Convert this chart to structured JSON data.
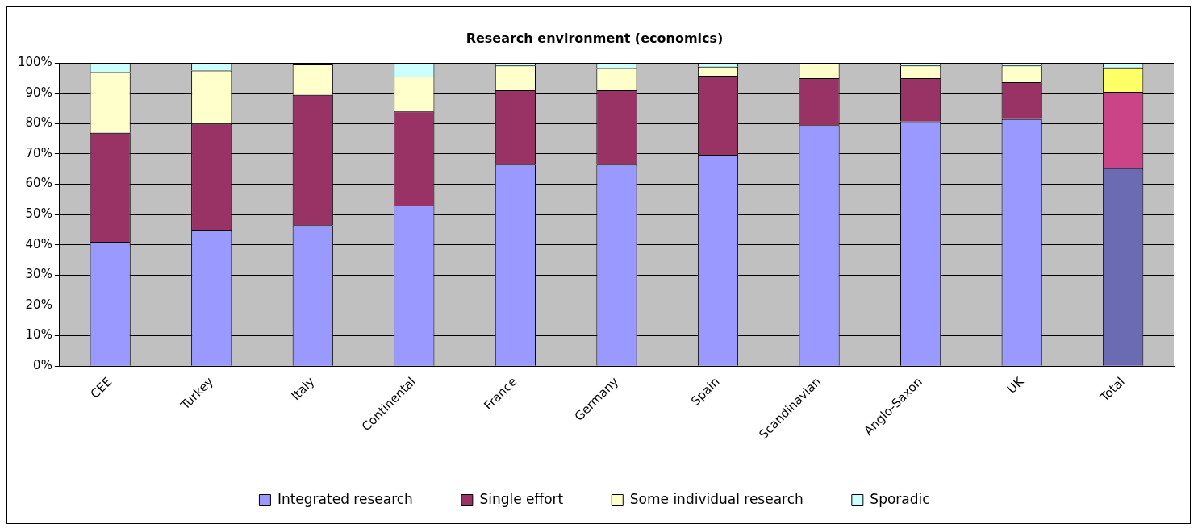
{
  "chart_data": {
    "type": "bar",
    "title": "Research environment (economics)",
    "stacked": true,
    "categories": [
      "CEE",
      "Turkey",
      "Italy",
      "Continental",
      "France",
      "Germany",
      "Spain",
      "Scandinavian",
      "Anglo-Saxon",
      "UK",
      "Total"
    ],
    "series": [
      {
        "name": "Integrated research",
        "color": "#9999ff",
        "colors": [
          "#9999ff",
          "#9999ff",
          "#9999ff",
          "#9999ff",
          "#9999ff",
          "#9999ff",
          "#9999ff",
          "#9999ff",
          "#9999ff",
          "#9999ff",
          "#6b6bb3"
        ],
        "values": [
          41,
          45,
          46.5,
          53,
          66.5,
          66.5,
          69.7,
          79.5,
          80.8,
          81.5,
          65.3
        ]
      },
      {
        "name": "Single effort",
        "color": "#993366",
        "colors": [
          "#993366",
          "#993366",
          "#993366",
          "#993366",
          "#993366",
          "#993366",
          "#993366",
          "#993366",
          "#993366",
          "#993366",
          "#cc4488"
        ],
        "values": [
          36,
          35,
          43,
          31,
          24.5,
          24.5,
          26.1,
          15.5,
          14.2,
          12.2,
          25.2
        ]
      },
      {
        "name": "Some individual research",
        "color": "#ffffcc",
        "colors": [
          "#ffffcc",
          "#ffffcc",
          "#ffffcc",
          "#ffffcc",
          "#ffffcc",
          "#ffffcc",
          "#ffffcc",
          "#ffffcc",
          "#ffffcc",
          "#ffffcc",
          "#ffff66"
        ],
        "values": [
          20,
          17.5,
          10,
          11.5,
          8.2,
          7.3,
          3,
          5,
          4.2,
          5.5,
          8
        ]
      },
      {
        "name": "Sporadic",
        "color": "#ccffff",
        "colors": [
          "#ccffff",
          "#ccffff",
          "#ccffff",
          "#ccffff",
          "#ccffff",
          "#ccffff",
          "#ccffff",
          "#ccffff",
          "#ccffff",
          "#ccffff",
          "#ccffff"
        ],
        "values": [
          3,
          2.5,
          0.5,
          4.5,
          0.8,
          1.7,
          1.2,
          0,
          0.8,
          0.8,
          1.5
        ]
      }
    ],
    "ylim": [
      0,
      100
    ],
    "yticks": [
      {
        "value": 0,
        "label": "0%"
      },
      {
        "value": 10,
        "label": "10%"
      },
      {
        "value": 20,
        "label": "20%"
      },
      {
        "value": 30,
        "label": "30%"
      },
      {
        "value": 40,
        "label": "40%"
      },
      {
        "value": 50,
        "label": "50%"
      },
      {
        "value": 60,
        "label": "60%"
      },
      {
        "value": 70,
        "label": "70%"
      },
      {
        "value": 80,
        "label": "80%"
      },
      {
        "value": 90,
        "label": "90%"
      },
      {
        "value": 100,
        "label": "100%"
      }
    ],
    "grid": "y",
    "legend": "bottom"
  }
}
